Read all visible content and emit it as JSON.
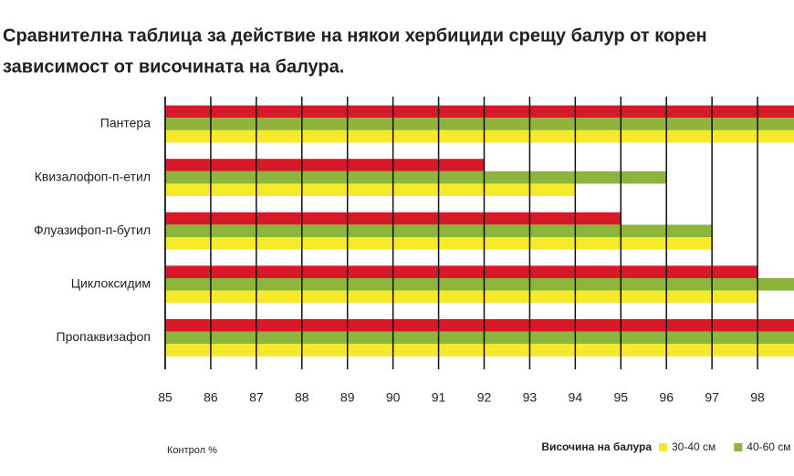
{
  "chart_data": {
    "type": "hbar",
    "title_lines": [
      "Сравнителна таблица за действие на някои хербициди срещу балур от корен",
      "зависимост от височината на балура."
    ],
    "categories": [
      "Пантера",
      "Квизалофоп-п-етил",
      "Флуазифоп-п-бутил",
      "Циклоксидим",
      "Пропаквизафоп"
    ],
    "series": [
      {
        "color": "#d7192a",
        "values": [
          98.8,
          92,
          95,
          98,
          98.8
        ]
      },
      {
        "name": "40-60 см",
        "color": "#8db53c",
        "values": [
          98.8,
          96,
          97,
          98.8,
          98.8
        ]
      },
      {
        "name": "30-40 см",
        "color": "#f5e92a",
        "values": [
          98.8,
          94,
          97,
          98,
          98.8
        ]
      }
    ],
    "xlim": [
      85,
      98.8
    ],
    "xticks": [
      85,
      86,
      87,
      88,
      89,
      90,
      91,
      92,
      93,
      94,
      95,
      96,
      97,
      98
    ],
    "xlabel": "Контрол %",
    "legend_title": "Височина на балура",
    "legend_order": [
      2,
      1
    ],
    "grid": true
  }
}
